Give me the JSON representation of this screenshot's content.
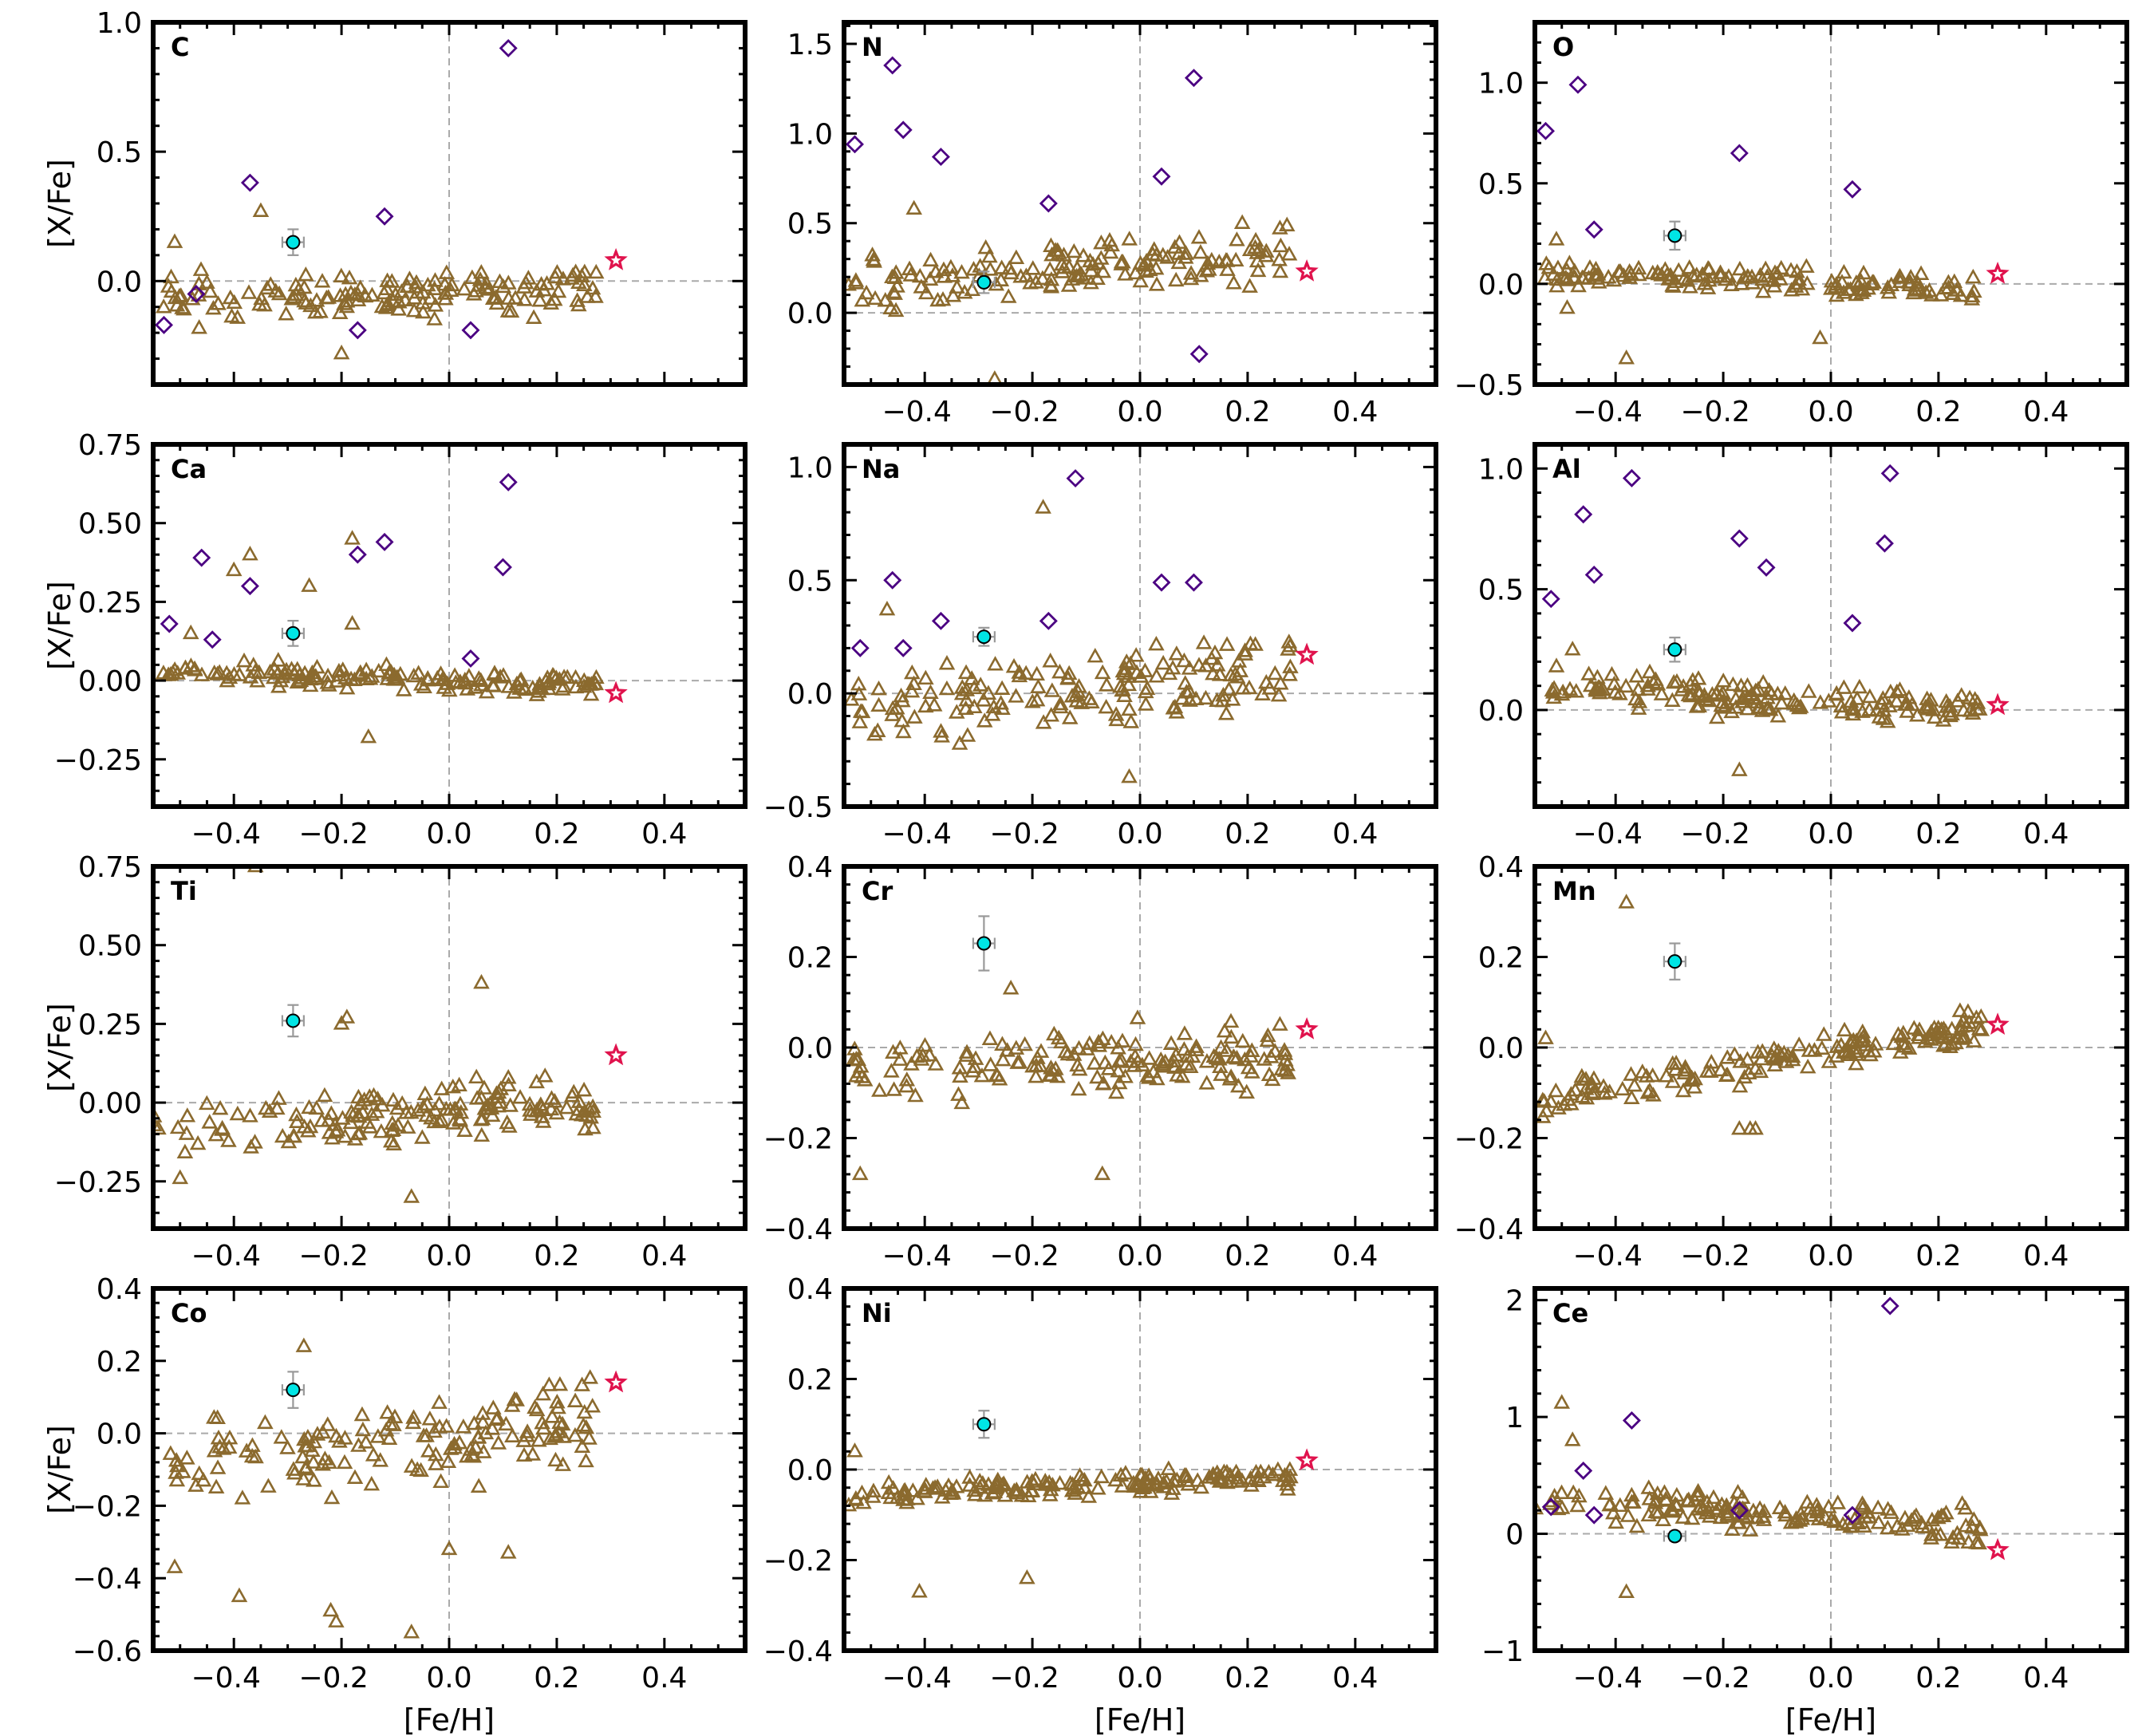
{
  "figure": {
    "colors": {
      "field_stars": "#8b6a2e",
      "program_star": "#00e5e5",
      "literature_stars": "#4b0082",
      "sun_marker": "#e0134d",
      "zero_lines": "#aaaaaa",
      "error_bars": "#999999"
    },
    "markers": {
      "field_stars": "triangle",
      "program_star": "circle",
      "literature_stars": "diamond",
      "sun_marker": "star"
    }
  },
  "chart_data": [
    {
      "type": "scatter",
      "element": "C",
      "xlabel": "",
      "ylabel": "[X/Fe]",
      "xlim": [
        -0.55,
        0.55
      ],
      "ylim": [
        -0.4,
        1.0
      ],
      "xticks": [
        -0.4,
        -0.2,
        0.0,
        0.2,
        0.4
      ],
      "xtick_labels": [
        "",
        "",
        "",
        "",
        ""
      ],
      "yticks": [
        0.0,
        0.5,
        1.0
      ],
      "ytick_labels": [
        "0.0",
        "0.5",
        "1.0"
      ],
      "highlight": {
        "x": -0.29,
        "y": 0.15,
        "xerr": 0.02,
        "yerr": 0.05
      },
      "diamonds": [
        [
          -0.53,
          -0.17
        ],
        [
          -0.47,
          -0.05
        ],
        [
          -0.37,
          0.38
        ],
        [
          -0.17,
          -0.19
        ],
        [
          -0.12,
          0.25
        ],
        [
          0.04,
          -0.19
        ],
        [
          0.11,
          0.9
        ]
      ],
      "star": [
        0.31,
        0.08
      ],
      "field": {
        "seed": 11,
        "n": 150,
        "base": -0.05,
        "slope": 0.05,
        "scatter": 0.07,
        "min": -0.3,
        "max": 0.3
      },
      "extra": [
        [
          -0.35,
          0.27
        ],
        [
          -0.51,
          0.15
        ],
        [
          -0.2,
          -0.28
        ]
      ]
    },
    {
      "type": "scatter",
      "element": "N",
      "xlabel": "",
      "ylabel": "",
      "xlim": [
        -0.55,
        0.55
      ],
      "ylim": [
        -0.4,
        1.62
      ],
      "xticks": [
        -0.4,
        -0.2,
        0.0,
        0.2,
        0.4
      ],
      "xtick_labels": [
        "−0.4",
        "−0.2",
        "0.0",
        "0.2",
        "0.4"
      ],
      "yticks": [
        0.0,
        0.5,
        1.0,
        1.5
      ],
      "ytick_labels": [
        "0.0",
        "0.5",
        "1.0",
        "1.5"
      ],
      "highlight": {
        "x": -0.29,
        "y": 0.17,
        "xerr": 0.02,
        "yerr": 0.06
      },
      "diamonds": [
        [
          -0.53,
          0.94
        ],
        [
          -0.46,
          1.38
        ],
        [
          -0.44,
          1.02
        ],
        [
          -0.37,
          0.87
        ],
        [
          -0.17,
          0.61
        ],
        [
          0.04,
          0.76
        ],
        [
          0.1,
          1.31
        ],
        [
          0.11,
          -0.23
        ]
      ],
      "star": [
        0.31,
        0.23
      ],
      "field": {
        "seed": 23,
        "n": 150,
        "base": 0.27,
        "slope": 0.2,
        "scatter": 0.13,
        "min": -0.4,
        "max": 0.63
      },
      "extra": [
        [
          -0.27,
          -0.37
        ],
        [
          -0.42,
          0.58
        ],
        [
          0.19,
          0.5
        ],
        [
          0.26,
          0.47
        ]
      ]
    },
    {
      "type": "scatter",
      "element": "O",
      "xlabel": "",
      "ylabel": "",
      "xlim": [
        -0.55,
        0.55
      ],
      "ylim": [
        -0.5,
        1.3
      ],
      "xticks": [
        -0.4,
        -0.2,
        0.0,
        0.2,
        0.4
      ],
      "xtick_labels": [
        "−0.4",
        "−0.2",
        "0.0",
        "0.2",
        "0.4"
      ],
      "yticks": [
        -0.5,
        0.0,
        0.5,
        1.0
      ],
      "ytick_labels": [
        "−0.5",
        "0.0",
        "0.5",
        "1.0"
      ],
      "highlight": {
        "x": -0.29,
        "y": 0.24,
        "xerr": 0.02,
        "yerr": 0.07
      },
      "diamonds": [
        [
          -0.53,
          0.76
        ],
        [
          -0.47,
          0.99
        ],
        [
          -0.44,
          0.27
        ],
        [
          -0.17,
          0.65
        ],
        [
          0.04,
          0.47
        ]
      ],
      "star": [
        0.31,
        0.05
      ],
      "field": {
        "seed": 37,
        "n": 150,
        "base": 0.0,
        "slope": -0.1,
        "scatter": 0.05,
        "min": -0.2,
        "max": 0.3
      },
      "extra": [
        [
          -0.38,
          -0.37
        ],
        [
          -0.51,
          0.22
        ],
        [
          -0.49,
          -0.12
        ],
        [
          -0.02,
          -0.27
        ]
      ]
    },
    {
      "type": "scatter",
      "element": "Ca",
      "xlabel": "",
      "ylabel": "[X/Fe]",
      "xlim": [
        -0.55,
        0.55
      ],
      "ylim": [
        -0.4,
        0.75
      ],
      "xticks": [
        -0.4,
        -0.2,
        0.0,
        0.2,
        0.4
      ],
      "xtick_labels": [
        "−0.4",
        "−0.2",
        "0.0",
        "0.2",
        "0.4"
      ],
      "yticks": [
        -0.25,
        0.0,
        0.25,
        0.5,
        0.75
      ],
      "ytick_labels": [
        "−0.25",
        "0.00",
        "0.25",
        "0.50",
        "0.75"
      ],
      "highlight": {
        "x": -0.29,
        "y": 0.15,
        "xerr": 0.02,
        "yerr": 0.04
      },
      "diamonds": [
        [
          -0.52,
          0.18
        ],
        [
          -0.46,
          0.39
        ],
        [
          -0.44,
          0.13
        ],
        [
          -0.37,
          0.3
        ],
        [
          -0.17,
          0.4
        ],
        [
          -0.12,
          0.44
        ],
        [
          0.04,
          0.07
        ],
        [
          0.1,
          0.36
        ],
        [
          0.11,
          0.63
        ]
      ],
      "star": [
        0.31,
        -0.04
      ],
      "field": {
        "seed": 41,
        "n": 150,
        "base": 0.0,
        "slope": -0.05,
        "scatter": 0.03,
        "min": -0.1,
        "max": 0.15
      },
      "extra": [
        [
          -0.37,
          0.4
        ],
        [
          -0.4,
          0.35
        ],
        [
          -0.18,
          0.45
        ],
        [
          -0.15,
          -0.18
        ],
        [
          -0.48,
          0.15
        ],
        [
          -0.26,
          0.3
        ],
        [
          -0.18,
          0.18
        ]
      ]
    },
    {
      "type": "scatter",
      "element": "Na",
      "xlabel": "",
      "ylabel": "",
      "xlim": [
        -0.55,
        0.55
      ],
      "ylim": [
        -0.5,
        1.1
      ],
      "xticks": [
        -0.4,
        -0.2,
        0.0,
        0.2,
        0.4
      ],
      "xtick_labels": [
        "−0.4",
        "−0.2",
        "0.0",
        "0.2",
        "0.4"
      ],
      "yticks": [
        -0.5,
        0.0,
        0.5,
        1.0
      ],
      "ytick_labels": [
        "−0.5",
        "0.0",
        "0.5",
        "1.0"
      ],
      "highlight": {
        "x": -0.29,
        "y": 0.25,
        "xerr": 0.02,
        "yerr": 0.04
      },
      "diamonds": [
        [
          -0.52,
          0.2
        ],
        [
          -0.46,
          0.5
        ],
        [
          -0.44,
          0.2
        ],
        [
          -0.37,
          0.32
        ],
        [
          -0.17,
          0.32
        ],
        [
          -0.12,
          0.95
        ],
        [
          0.04,
          0.49
        ],
        [
          0.1,
          0.49
        ]
      ],
      "star": [
        0.31,
        0.17
      ],
      "field": {
        "seed": 53,
        "n": 160,
        "base": 0.05,
        "slope": 0.2,
        "scatter": 0.15,
        "min": -0.4,
        "max": 0.4
      },
      "extra": [
        [
          -0.18,
          0.82
        ],
        [
          -0.47,
          0.37
        ],
        [
          -0.02,
          -0.37
        ]
      ]
    },
    {
      "type": "scatter",
      "element": "Al",
      "xlabel": "",
      "ylabel": "",
      "xlim": [
        -0.55,
        0.55
      ],
      "ylim": [
        -0.4,
        1.1
      ],
      "xticks": [
        -0.4,
        -0.2,
        0.0,
        0.2,
        0.4
      ],
      "xtick_labels": [
        "−0.4",
        "−0.2",
        "0.0",
        "0.2",
        "0.4"
      ],
      "yticks": [
        0.0,
        0.5,
        1.0
      ],
      "ytick_labels": [
        "0.0",
        "0.5",
        "1.0"
      ],
      "highlight": {
        "x": -0.29,
        "y": 0.25,
        "xerr": 0.02,
        "yerr": 0.05
      },
      "diamonds": [
        [
          -0.52,
          0.46
        ],
        [
          -0.46,
          0.81
        ],
        [
          -0.44,
          0.56
        ],
        [
          -0.37,
          0.96
        ],
        [
          -0.17,
          0.71
        ],
        [
          -0.12,
          0.59
        ],
        [
          0.04,
          0.36
        ],
        [
          0.1,
          0.69
        ],
        [
          0.11,
          0.98
        ]
      ],
      "star": [
        0.31,
        0.02
      ],
      "field": {
        "seed": 61,
        "n": 160,
        "base": 0.03,
        "slope": -0.1,
        "scatter": 0.06,
        "min": -0.27,
        "max": 0.25
      },
      "extra": [
        [
          -0.48,
          0.25
        ],
        [
          -0.51,
          0.18
        ],
        [
          -0.17,
          -0.25
        ]
      ]
    },
    {
      "type": "scatter",
      "element": "Ti",
      "xlabel": "",
      "ylabel": "[X/Fe]",
      "xlim": [
        -0.55,
        0.55
      ],
      "ylim": [
        -0.4,
        0.75
      ],
      "xticks": [
        -0.4,
        -0.2,
        0.0,
        0.2,
        0.4
      ],
      "xtick_labels": [
        "−0.4",
        "−0.2",
        "0.0",
        "0.2",
        "0.4"
      ],
      "yticks": [
        -0.25,
        0.0,
        0.25,
        0.5,
        0.75
      ],
      "ytick_labels": [
        "−0.25",
        "0.00",
        "0.25",
        "0.50",
        "0.75"
      ],
      "highlight": {
        "x": -0.29,
        "y": 0.26,
        "xerr": 0.02,
        "yerr": 0.05
      },
      "diamonds": [],
      "star": [
        0.31,
        0.15
      ],
      "field": {
        "seed": 71,
        "n": 160,
        "base": -0.03,
        "slope": 0.1,
        "scatter": 0.07,
        "min": -0.3,
        "max": 0.3
      },
      "extra": [
        [
          -0.36,
          0.75
        ],
        [
          0.06,
          0.38
        ],
        [
          -0.19,
          0.27
        ],
        [
          -0.2,
          0.25
        ],
        [
          -0.07,
          -0.3
        ],
        [
          -0.5,
          -0.24
        ]
      ]
    },
    {
      "type": "scatter",
      "element": "Cr",
      "xlabel": "",
      "ylabel": "",
      "xlim": [
        -0.55,
        0.55
      ],
      "ylim": [
        -0.4,
        0.4
      ],
      "xticks": [
        -0.4,
        -0.2,
        0.0,
        0.2,
        0.4
      ],
      "xtick_labels": [
        "−0.4",
        "−0.2",
        "0.0",
        "0.2",
        "0.4"
      ],
      "yticks": [
        -0.4,
        -0.2,
        0.0,
        0.2,
        0.4
      ],
      "ytick_labels": [
        "−0.4",
        "−0.2",
        "0.0",
        "0.2",
        "0.4"
      ],
      "highlight": {
        "x": -0.29,
        "y": 0.23,
        "xerr": 0.02,
        "yerr": 0.06
      },
      "diamonds": [],
      "star": [
        0.31,
        0.04
      ],
      "field": {
        "seed": 83,
        "n": 160,
        "base": -0.03,
        "slope": 0.0,
        "scatter": 0.06,
        "min": -0.28,
        "max": 0.15
      },
      "extra": [
        [
          -0.52,
          -0.28
        ],
        [
          -0.24,
          0.13
        ],
        [
          -0.07,
          -0.28
        ],
        [
          0.26,
          0.05
        ]
      ]
    },
    {
      "type": "scatter",
      "element": "Mn",
      "xlabel": "",
      "ylabel": "",
      "xlim": [
        -0.55,
        0.55
      ],
      "ylim": [
        -0.4,
        0.4
      ],
      "xticks": [
        -0.4,
        -0.2,
        0.0,
        0.2,
        0.4
      ],
      "xtick_labels": [
        "−0.4",
        "−0.2",
        "0.0",
        "0.2",
        "0.4"
      ],
      "yticks": [
        -0.4,
        -0.2,
        0.0,
        0.2,
        0.4
      ],
      "ytick_labels": [
        "−0.4",
        "−0.2",
        "0.0",
        "0.2",
        "0.4"
      ],
      "highlight": {
        "x": -0.29,
        "y": 0.19,
        "xerr": 0.02,
        "yerr": 0.04
      },
      "diamonds": [],
      "star": [
        0.31,
        0.05
      ],
      "field": {
        "seed": 97,
        "n": 160,
        "base": -0.01,
        "slope": 0.2,
        "scatter": 0.03,
        "min": -0.18,
        "max": 0.12
      },
      "extra": [
        [
          -0.38,
          0.32
        ],
        [
          -0.17,
          -0.18
        ],
        [
          -0.15,
          -0.18
        ],
        [
          -0.14,
          -0.18
        ],
        [
          -0.53,
          0.02
        ],
        [
          0.24,
          0.08
        ]
      ]
    },
    {
      "type": "scatter",
      "element": "Co",
      "xlabel": "[Fe/H]",
      "ylabel": "[X/Fe]",
      "xlim": [
        -0.55,
        0.55
      ],
      "ylim": [
        -0.6,
        0.4
      ],
      "xticks": [
        -0.4,
        -0.2,
        0.0,
        0.2,
        0.4
      ],
      "xtick_labels": [
        "−0.4",
        "−0.2",
        "0.0",
        "0.2",
        "0.4"
      ],
      "yticks": [
        -0.6,
        -0.4,
        -0.2,
        0.0,
        0.2,
        0.4
      ],
      "ytick_labels": [
        "−0.6",
        "−0.4",
        "−0.2",
        "0.0",
        "0.2",
        "0.4"
      ],
      "highlight": {
        "x": -0.29,
        "y": 0.12,
        "xerr": 0.02,
        "yerr": 0.05
      },
      "diamonds": [],
      "star": [
        0.31,
        0.14
      ],
      "field": {
        "seed": 103,
        "n": 150,
        "base": -0.02,
        "slope": 0.15,
        "scatter": 0.1,
        "min": -0.45,
        "max": 0.2
      },
      "extra": [
        [
          -0.27,
          0.24
        ],
        [
          -0.39,
          -0.45
        ],
        [
          -0.22,
          -0.49
        ],
        [
          -0.21,
          -0.52
        ],
        [
          -0.07,
          -0.55
        ],
        [
          -0.51,
          -0.37
        ],
        [
          0.0,
          -0.32
        ],
        [
          0.11,
          -0.33
        ]
      ]
    },
    {
      "type": "scatter",
      "element": "Ni",
      "xlabel": "[Fe/H]",
      "ylabel": "",
      "xlim": [
        -0.55,
        0.55
      ],
      "ylim": [
        -0.4,
        0.4
      ],
      "xticks": [
        -0.4,
        -0.2,
        0.0,
        0.2,
        0.4
      ],
      "xtick_labels": [
        "−0.4",
        "−0.2",
        "0.0",
        "0.2",
        "0.4"
      ],
      "yticks": [
        -0.4,
        -0.2,
        0.0,
        0.2,
        0.4
      ],
      "ytick_labels": [
        "−0.4",
        "−0.2",
        "0.0",
        "0.2",
        "0.4"
      ],
      "highlight": {
        "x": -0.29,
        "y": 0.1,
        "xerr": 0.02,
        "yerr": 0.03
      },
      "diamonds": [],
      "star": [
        0.31,
        0.02
      ],
      "field": {
        "seed": 113,
        "n": 160,
        "base": -0.03,
        "slope": 0.05,
        "scatter": 0.02,
        "min": -0.08,
        "max": 0.05
      },
      "extra": [
        [
          -0.41,
          -0.27
        ],
        [
          -0.21,
          -0.24
        ],
        [
          -0.53,
          0.04
        ]
      ]
    },
    {
      "type": "scatter",
      "element": "Ce",
      "xlabel": "[Fe/H]",
      "ylabel": "",
      "xlim": [
        -0.55,
        0.55
      ],
      "ylim": [
        -1.0,
        2.1
      ],
      "xticks": [
        -0.4,
        -0.2,
        0.0,
        0.2,
        0.4
      ],
      "xtick_labels": [
        "−0.4",
        "−0.2",
        "0.0",
        "0.2",
        "0.4"
      ],
      "yticks": [
        -1,
        0,
        1,
        2
      ],
      "ytick_labels": [
        "−1",
        "0",
        "1",
        "2"
      ],
      "highlight": {
        "x": -0.29,
        "y": -0.02,
        "xerr": 0.02,
        "yerr": 0.04
      },
      "diamonds": [
        [
          -0.52,
          0.23
        ],
        [
          -0.46,
          0.54
        ],
        [
          -0.44,
          0.16
        ],
        [
          -0.37,
          0.97
        ],
        [
          -0.17,
          0.2
        ],
        [
          0.04,
          0.16
        ],
        [
          0.11,
          1.95
        ]
      ],
      "star": [
        0.31,
        -0.14
      ],
      "field": {
        "seed": 127,
        "n": 160,
        "base": 0.14,
        "slope": -0.3,
        "scatter": 0.13,
        "min": -0.5,
        "max": 0.6
      },
      "extra": [
        [
          -0.5,
          1.12
        ],
        [
          -0.38,
          -0.5
        ],
        [
          -0.48,
          0.8
        ]
      ]
    }
  ]
}
